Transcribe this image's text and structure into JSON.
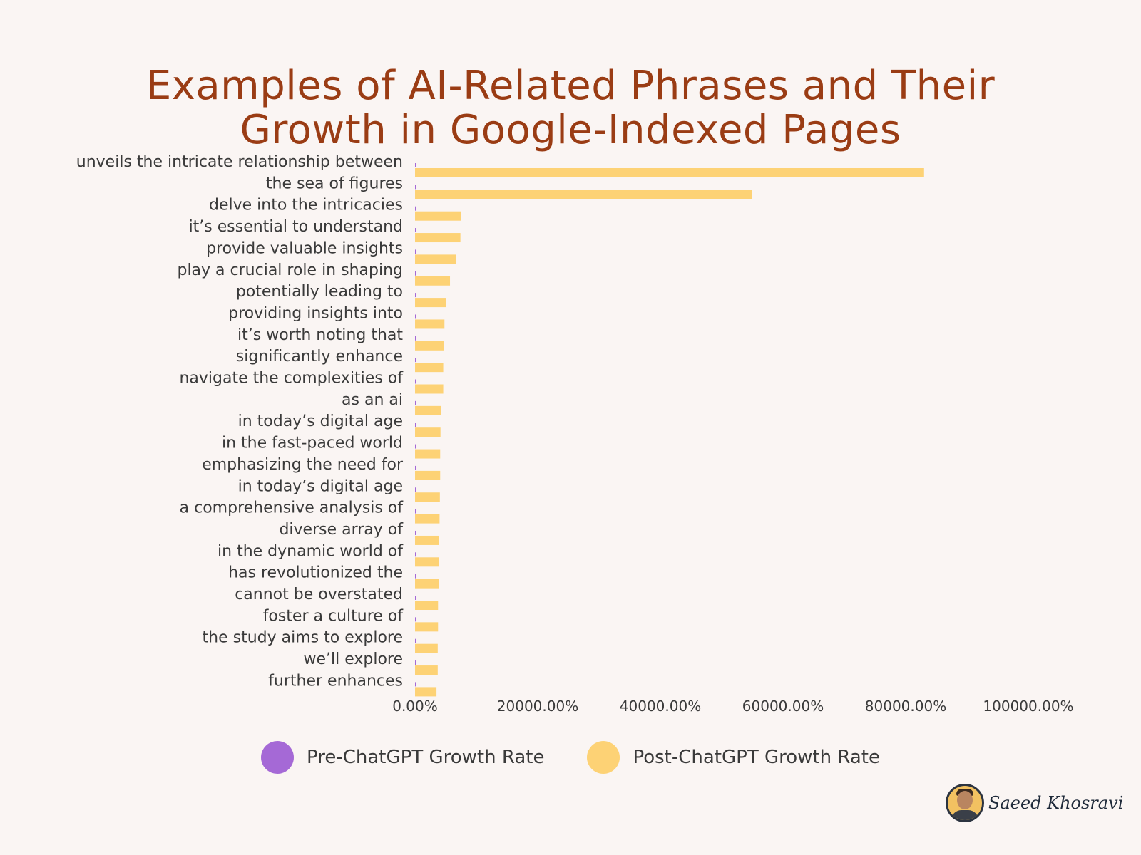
{
  "chart_data": {
    "type": "bar",
    "orientation": "horizontal",
    "title_lines": [
      "Examples of AI-Related Phrases and Their",
      "Growth in Google-Indexed Pages"
    ],
    "categories": [
      "unveils the intricate relationship between",
      "the sea of figures",
      "delve into the intricacies",
      "it’s essential to understand",
      "provide valuable insights",
      "play a crucial role in shaping",
      "potentially leading to",
      "providing insights into",
      "it’s worth noting that",
      "significantly enhance",
      "navigate the complexities of",
      "as an ai",
      "in today’s digital age",
      "in the fast-paced world",
      "emphasizing the need for",
      "in today’s digital age",
      "a comprehensive analysis of",
      "diverse array of",
      "in the dynamic world of",
      "has revolutionized the",
      "cannot be overstated",
      "foster a culture of",
      "the study aims to explore",
      "we’ll explore",
      "further enhances"
    ],
    "series": [
      {
        "name": "Pre-ChatGPT Growth Rate",
        "color": "#a569d6",
        "values": [
          50,
          200,
          50,
          30,
          30,
          20,
          20,
          20,
          20,
          20,
          20,
          100,
          20,
          20,
          20,
          20,
          100,
          20,
          20,
          20,
          20,
          20,
          100,
          100,
          20
        ]
      },
      {
        "name": "Post-ChatGPT Growth Rate",
        "color": "#fdd275",
        "values": [
          83000,
          55000,
          7500,
          7400,
          6700,
          5700,
          5100,
          4800,
          4650,
          4600,
          4600,
          4300,
          4150,
          4100,
          4100,
          4050,
          4000,
          3900,
          3850,
          3850,
          3750,
          3750,
          3700,
          3700,
          3500
        ]
      }
    ],
    "xlim": [
      0,
      100000
    ],
    "xticks": [
      "0.00%",
      "20000.00%",
      "40000.00%",
      "60000.00%",
      "80000.00%",
      "100000.00%"
    ],
    "xtick_values": [
      0,
      20000,
      40000,
      60000,
      80000,
      100000
    ],
    "grid": false,
    "legend_position": "bottom"
  },
  "signature": {
    "name": "Saeed Khosravi",
    "avatar_icon": "avatar-portrait-icon"
  }
}
